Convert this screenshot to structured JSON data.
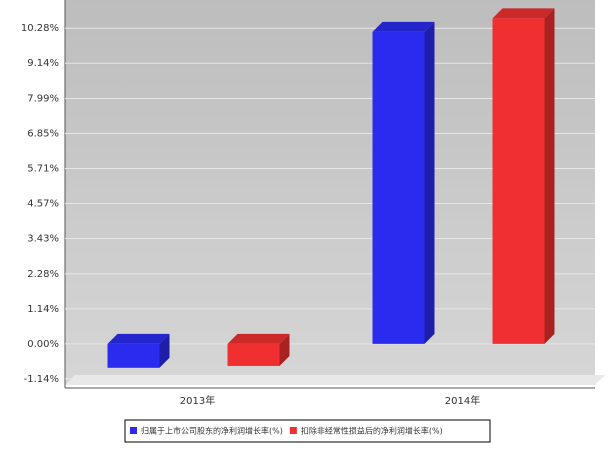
{
  "chart_data": {
    "type": "bar3d",
    "categories": [
      "2013年",
      "2014年"
    ],
    "series": [
      {
        "name": "归属于上市公司股东的净利润增长率(%)",
        "color": "#2b2bf0",
        "values": [
          -0.78,
          10.16
        ]
      },
      {
        "name": "扣除非经常性损益后的净利润增长率(%)",
        "color": "#f03030",
        "values": [
          -0.72,
          10.6
        ]
      }
    ],
    "ylim": [
      -1.34,
      11.2
    ],
    "yticks": [
      {
        "value": -1.14,
        "label": "-1.14%"
      },
      {
        "value": 0,
        "label": "0.00%"
      },
      {
        "value": 1.14,
        "label": "1.14%"
      },
      {
        "value": 2.28,
        "label": "2.28%"
      },
      {
        "value": 3.43,
        "label": "3.43%"
      },
      {
        "value": 4.57,
        "label": "4.57%"
      },
      {
        "value": 5.71,
        "label": "5.71%"
      },
      {
        "value": 6.85,
        "label": "6.85%"
      },
      {
        "value": 7.99,
        "label": "7.99%"
      },
      {
        "value": 9.14,
        "label": "9.14%"
      },
      {
        "value": 10.28,
        "label": "10.28%"
      }
    ],
    "grid": true
  }
}
